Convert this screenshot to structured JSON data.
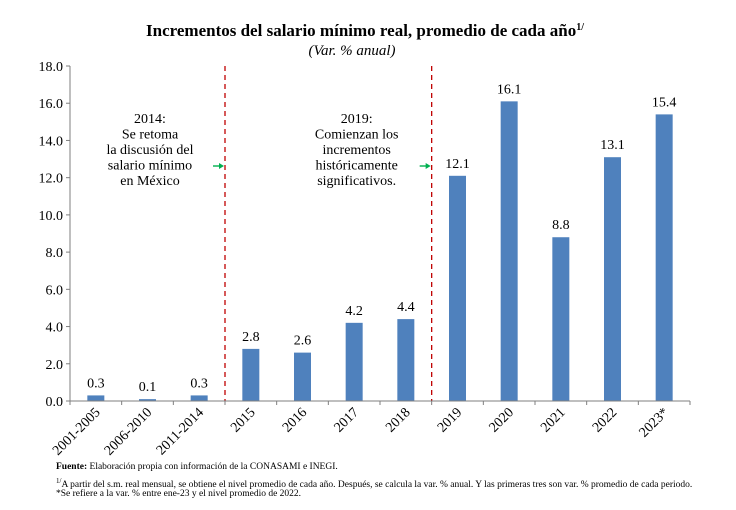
{
  "chart_data": {
    "type": "bar",
    "title": "Incrementos del salario mínimo real, promedio de cada año",
    "title_superscript": "1/",
    "subtitle": "(Var. % anual)",
    "categories": [
      "2001-2005",
      "2006-2010",
      "2011-2014",
      "2015",
      "2016",
      "2017",
      "2018",
      "2019",
      "2020",
      "2021",
      "2022",
      "2023*"
    ],
    "values": [
      0.3,
      0.1,
      0.3,
      2.8,
      2.6,
      4.2,
      4.4,
      12.1,
      16.1,
      8.8,
      13.1,
      15.4
    ],
    "data_labels": [
      "0.3",
      "0.1",
      "0.3",
      "2.8",
      "2.6",
      "4.2",
      "4.4",
      "12.1",
      "16.1",
      "8.8",
      "13.1",
      "15.4"
    ],
    "ylim": [
      0,
      18
    ],
    "yticks": [
      "0.0",
      "2.0",
      "4.0",
      "6.0",
      "8.0",
      "10.0",
      "12.0",
      "14.0",
      "16.0",
      "18.0"
    ],
    "ytick_values": [
      0,
      2,
      4,
      6,
      8,
      10,
      12,
      14,
      16,
      18
    ],
    "xlabel": "",
    "ylabel": "",
    "bar_color": "#4f81bd",
    "divider_color": "#c00000",
    "arrow_color": "#00b050",
    "dividers_after_index": [
      2,
      6
    ],
    "annotations": [
      {
        "lines": [
          "2014:",
          "Se retoma",
          "la discusión del",
          "salario mínimo",
          "en México"
        ],
        "arrow_to_divider": 0
      },
      {
        "lines": [
          "2019:",
          "Comienzan los",
          "incrementos",
          "históricamente",
          "significativos."
        ],
        "arrow_to_divider": 1
      }
    ]
  },
  "footnotes": {
    "source_label": "Fuente:",
    "source_text": " Elaboración propia con información de la CONASAMI e INEGI.",
    "note1_marker": "1/",
    "note1_text": "A partir del s.m. real mensual, se obtiene el nivel promedio de cada año. Después, se calcula la var. % anual. Y las primeras tres son var. % promedio de cada periodo.",
    "note2_marker": "*",
    "note2_text": "Se refiere a la var. % entre ene-23 y el nivel promedio de 2022."
  }
}
